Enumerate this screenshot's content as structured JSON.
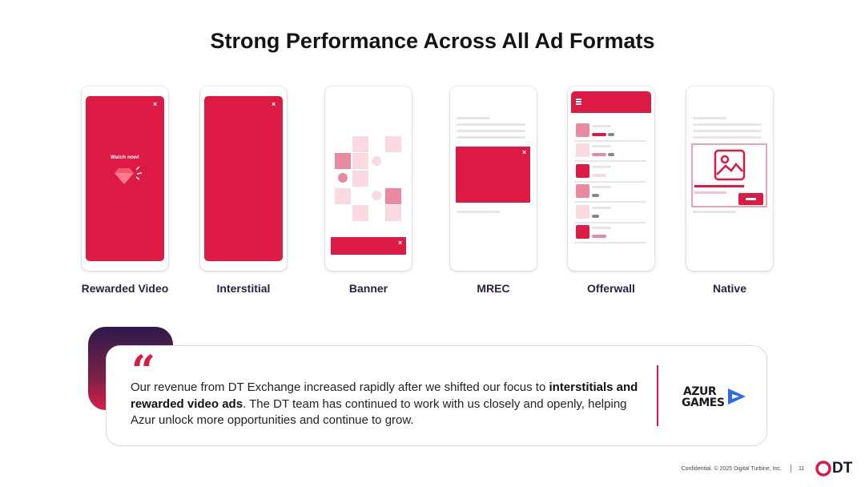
{
  "title": "Strong Performance Across All Ad Formats",
  "formats": [
    {
      "label": "Rewarded Video"
    },
    {
      "label": "Interstitial"
    },
    {
      "label": "Banner"
    },
    {
      "label": "MREC"
    },
    {
      "label": "Offerwall"
    },
    {
      "label": "Native"
    }
  ],
  "rewarded": {
    "cta": "Watch now!"
  },
  "close_glyph": "×",
  "quote": {
    "mark": "“",
    "text_before": "Our revenue from DT Exchange increased rapidly after we shifted our focus to ",
    "text_bold": "interstitials and rewarded video ads",
    "text_after": ". The DT team has continued to work with us closely and openly, helping Azur unlock more opportunities and continue to grow."
  },
  "partner_logo": {
    "line1": "AZUR",
    "line2": "GAMES"
  },
  "footer": {
    "confidential": "Confidential. © 2025 Digital Turbine, Inc.",
    "page": "11",
    "logo": "DT"
  },
  "colors": {
    "accent": "#dc1a43",
    "accent_light": "#f9d4dd",
    "accent_mid": "#e98aa0",
    "text_dark": "#2a2240"
  }
}
